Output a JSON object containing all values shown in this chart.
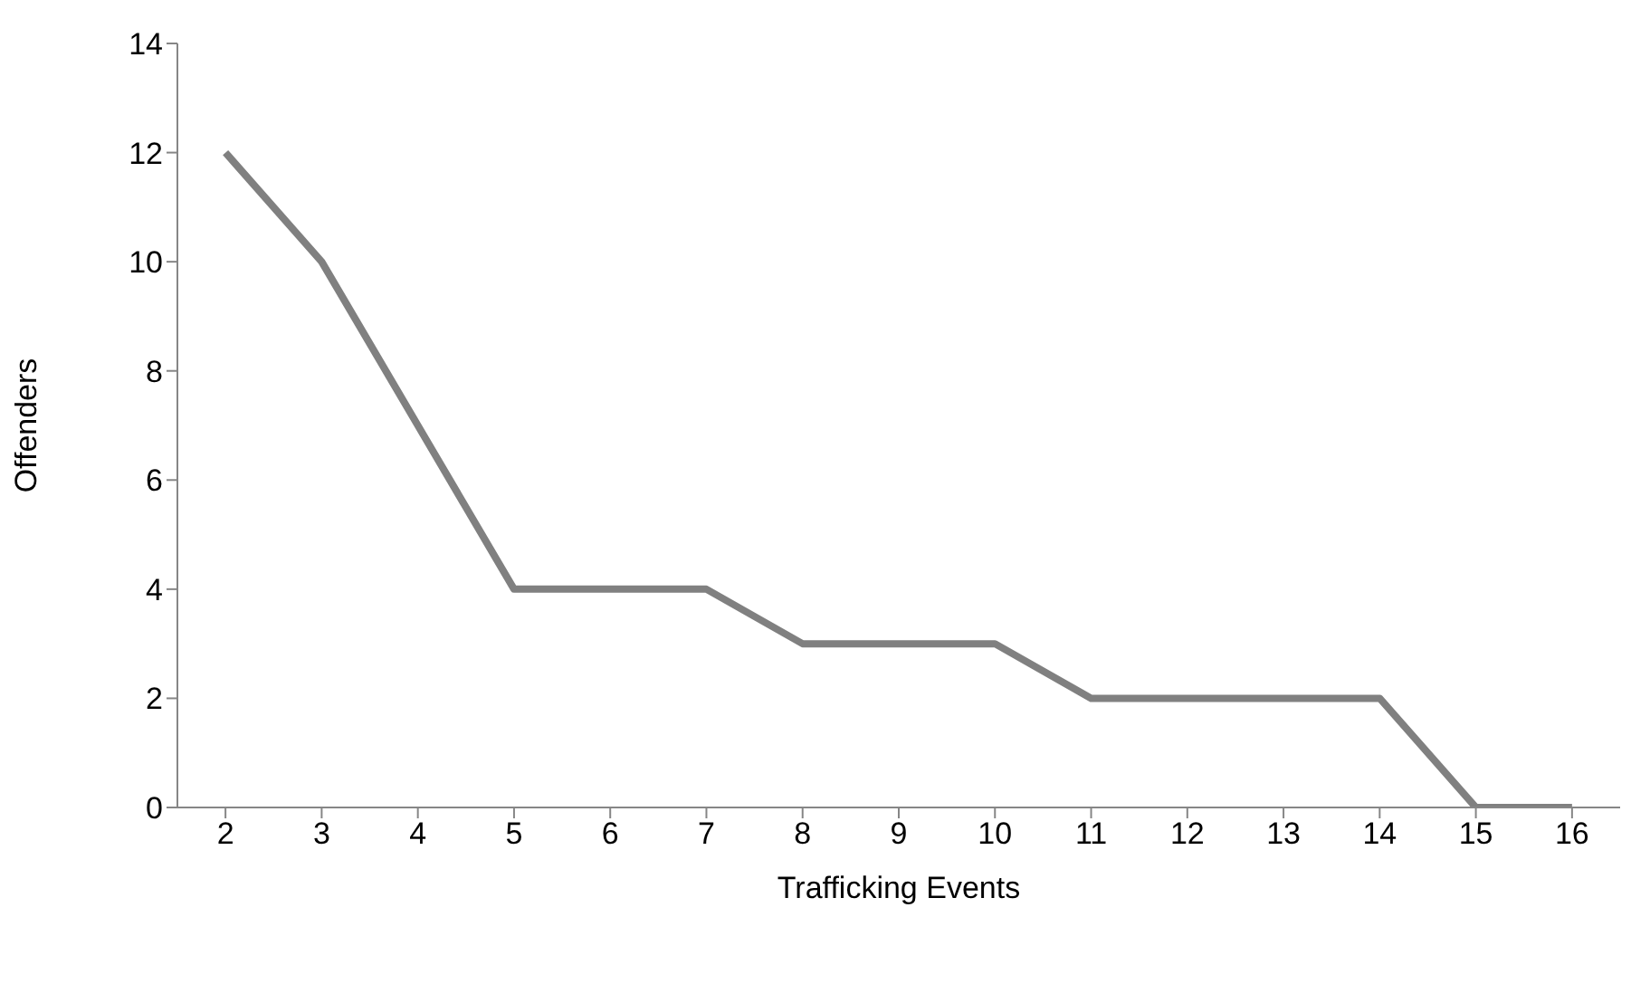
{
  "chart_data": {
    "type": "line",
    "xlabel": "Trafficking Events",
    "ylabel": "Offenders",
    "categories": [
      "2",
      "3",
      "4",
      "5",
      "6",
      "7",
      "8",
      "9",
      "10",
      "11",
      "12",
      "13",
      "14",
      "15",
      "16"
    ],
    "series": [
      {
        "color": "#808080",
        "values": [
          12,
          10,
          7,
          4,
          4,
          4,
          3,
          3,
          3,
          2,
          2,
          2,
          2,
          0,
          0
        ]
      }
    ],
    "ylim": [
      0,
      14
    ],
    "yticks": [
      0,
      2,
      4,
      6,
      8,
      10,
      12,
      14
    ],
    "grid": false,
    "legend": false,
    "marker": "none",
    "line_style": "solid"
  }
}
